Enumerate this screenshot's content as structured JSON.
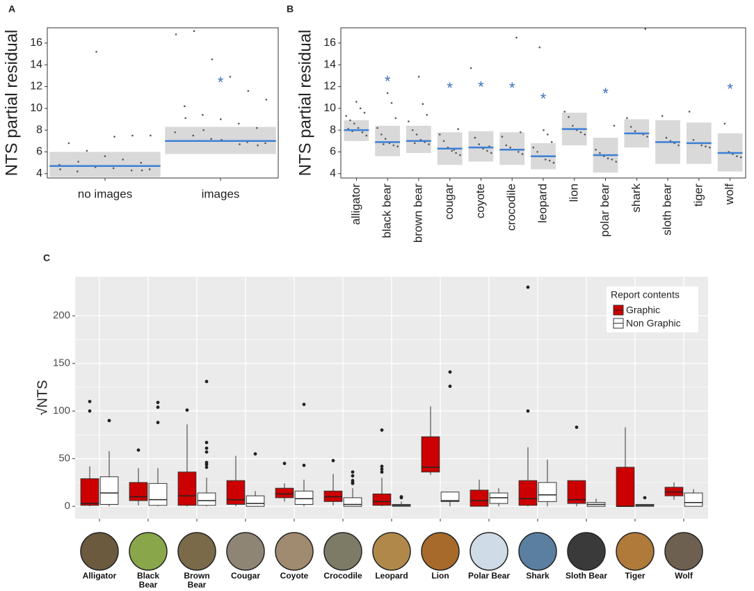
{
  "chart_data": [
    {
      "type": "interval",
      "panel": "A",
      "ylabel": "NTS partial residual",
      "categories": [
        "no images",
        "images"
      ],
      "values": [
        4.7,
        7.0
      ],
      "lower": [
        3.7,
        5.8
      ],
      "upper": [
        6.0,
        8.3
      ],
      "annotations": [
        null,
        "*"
      ],
      "points": [
        [
          4.4,
          4.3,
          4.5,
          4.6,
          4.2,
          4.8,
          5.0,
          5.3,
          5.6,
          6.1,
          6.8,
          7.5,
          7.5,
          7.4,
          15.2,
          5.1,
          4.4,
          4.3
        ],
        [
          6.8,
          6.9,
          7.0,
          7.2,
          7.5,
          7.8,
          8.2,
          8.6,
          9.0,
          9.4,
          10.2,
          10.8,
          11.6,
          12.9,
          14.5,
          17.1,
          16.8,
          6.6,
          6.7,
          7.1,
          8.0,
          9.1
        ]
      ],
      "ylim": [
        3.6,
        17.4
      ],
      "yticks": [
        4,
        6,
        8,
        10,
        12,
        14,
        16
      ]
    },
    {
      "type": "interval",
      "panel": "B",
      "ylabel": "NTS partial residual",
      "categories": [
        "alligator",
        "black bear",
        "brown bear",
        "cougar",
        "coyote",
        "crocodile",
        "leopard",
        "lion",
        "polar bear",
        "shark",
        "sloth bear",
        "tiger",
        "wolf"
      ],
      "values": [
        8.0,
        6.9,
        7.0,
        6.3,
        6.4,
        6.2,
        5.6,
        8.1,
        5.7,
        7.7,
        6.9,
        6.8,
        5.9
      ],
      "lower": [
        7.0,
        5.6,
        5.9,
        4.8,
        5.1,
        4.8,
        4.4,
        6.6,
        4.1,
        6.4,
        4.9,
        4.9,
        4.2
      ],
      "upper": [
        8.9,
        8.4,
        8.4,
        7.8,
        7.9,
        7.8,
        6.8,
        9.6,
        7.3,
        9.0,
        8.9,
        8.7,
        7.7
      ],
      "annotations": [
        null,
        "*",
        null,
        "*",
        "*",
        "*",
        "*",
        null,
        "*",
        null,
        null,
        null,
        "*"
      ],
      "points": [
        [
          7.5,
          7.8,
          8.2,
          8.6,
          8.9,
          9.3,
          9.6,
          10.0,
          10.6,
          7.9,
          8.1
        ],
        [
          6.5,
          6.6,
          6.8,
          7.2,
          7.6,
          8.2,
          9.1,
          10.5,
          11.4,
          6.7
        ],
        [
          6.7,
          6.9,
          7.1,
          7.6,
          8.0,
          8.8,
          9.4,
          10.4,
          12.9,
          6.8
        ],
        [
          5.7,
          5.9,
          6.1,
          6.4,
          7.0,
          7.6,
          8.1,
          6.2
        ],
        [
          5.9,
          6.1,
          6.3,
          6.7,
          7.3,
          13.7,
          6.5
        ],
        [
          5.8,
          6.0,
          6.2,
          6.4,
          6.6,
          7.4,
          7.8,
          16.5
        ],
        [
          5.0,
          5.2,
          5.3,
          5.6,
          6.0,
          6.4,
          6.9,
          7.6,
          8.0,
          15.6
        ],
        [
          7.6,
          7.8,
          8.0,
          8.4,
          9.2,
          9.7
        ],
        [
          5.1,
          5.3,
          5.4,
          5.6,
          5.9,
          6.2,
          8.4
        ],
        [
          7.4,
          7.6,
          7.7,
          7.9,
          8.3,
          9.1,
          17.3
        ],
        [
          6.6,
          6.8,
          7.0,
          7.3,
          9.3
        ],
        [
          6.4,
          6.5,
          6.6,
          6.8,
          7.1,
          9.7
        ],
        [
          5.5,
          5.6,
          5.8,
          6.0,
          8.6
        ]
      ],
      "ylim": [
        3.6,
        17.4
      ],
      "yticks": [
        4,
        6,
        8,
        10,
        12,
        14,
        16
      ]
    },
    {
      "type": "box",
      "panel": "C",
      "ylabel": "√NTS",
      "legend_title": "Report contents",
      "legend": "top-right",
      "grid": true,
      "categories": [
        "Alligator",
        "Black\nBear",
        "Brown\nBear",
        "Cougar",
        "Coyote",
        "Crocodile",
        "Leopard",
        "Lion",
        "Polar Bear",
        "Shark",
        "Sloth Bear",
        "Tiger",
        "Wolf"
      ],
      "series": [
        {
          "name": "Graphic",
          "color": "#cc0000",
          "boxes": [
            {
              "min": 0,
              "q1": 1,
              "median": 3,
              "q3": 29,
              "max": 42,
              "outliers": [
                100,
                110
              ]
            },
            {
              "min": 1,
              "q1": 6,
              "median": 10,
              "q3": 25,
              "max": 40,
              "outliers": [
                59
              ]
            },
            {
              "min": 0,
              "q1": 1,
              "median": 11,
              "q3": 36,
              "max": 86,
              "outliers": [
                101
              ]
            },
            {
              "min": 0,
              "q1": 2,
              "median": 7,
              "q3": 27,
              "max": 53,
              "outliers": []
            },
            {
              "min": 5,
              "q1": 9,
              "median": 13,
              "q3": 19,
              "max": 24,
              "outliers": [
                45
              ]
            },
            {
              "min": 1,
              "q1": 5,
              "median": 10,
              "q3": 16,
              "max": 34,
              "outliers": [
                48
              ]
            },
            {
              "min": 0,
              "q1": 1,
              "median": 5,
              "q3": 13,
              "max": 30,
              "outliers": [
                36,
                39,
                42,
                80
              ]
            },
            {
              "min": 33,
              "q1": 36,
              "median": 41,
              "q3": 73,
              "max": 105,
              "outliers": []
            },
            {
              "min": 0,
              "q1": 0,
              "median": 6,
              "q3": 17,
              "max": 28,
              "outliers": []
            },
            {
              "min": 0,
              "q1": 1,
              "median": 8,
              "q3": 27,
              "max": 62,
              "outliers": [
                100,
                230
              ]
            },
            {
              "min": 0,
              "q1": 3,
              "median": 7,
              "q3": 27,
              "max": 27,
              "outliers": [
                83
              ]
            },
            {
              "min": 0,
              "q1": 0,
              "median": 0,
              "q3": 41,
              "max": 83,
              "outliers": []
            },
            {
              "min": 7,
              "q1": 11,
              "median": 15,
              "q3": 20,
              "max": 25,
              "outliers": []
            }
          ]
        },
        {
          "name": "Non Graphic",
          "color": "#ffffff",
          "boxes": [
            {
              "min": 0,
              "q1": 2,
              "median": 14,
              "q3": 31,
              "max": 58,
              "outliers": [
                90
              ]
            },
            {
              "min": 0,
              "q1": 1,
              "median": 7,
              "q3": 24,
              "max": 40,
              "outliers": [
                88,
                104,
                109
              ]
            },
            {
              "min": 0,
              "q1": 1,
              "median": 6,
              "q3": 14,
              "max": 30,
              "outliers": [
                41,
                44,
                46,
                57,
                61,
                67,
                131
              ]
            },
            {
              "min": 0,
              "q1": 0,
              "median": 3,
              "q3": 11,
              "max": 16,
              "outliers": [
                55
              ]
            },
            {
              "min": 0,
              "q1": 2,
              "median": 8,
              "q3": 16,
              "max": 28,
              "outliers": [
                43,
                107
              ]
            },
            {
              "min": 0,
              "q1": 0,
              "median": 2,
              "q3": 9,
              "max": 19,
              "outliers": [
                24,
                25,
                27,
                32,
                36
              ]
            },
            {
              "min": 0,
              "q1": 0,
              "median": 1,
              "q3": 2,
              "max": 5,
              "outliers": [
                9,
                10
              ]
            },
            {
              "min": 0,
              "q1": 5,
              "median": 6,
              "q3": 15,
              "max": 15,
              "outliers": [
                126,
                141
              ]
            },
            {
              "min": 0,
              "q1": 3,
              "median": 9,
              "q3": 14,
              "max": 19,
              "outliers": []
            },
            {
              "min": 0,
              "q1": 5,
              "median": 12,
              "q3": 25,
              "max": 49,
              "outliers": []
            },
            {
              "min": 0,
              "q1": 0,
              "median": 2,
              "q3": 4,
              "max": 8,
              "outliers": []
            },
            {
              "min": 0,
              "q1": 0,
              "median": 1,
              "q3": 2,
              "max": 2,
              "outliers": [
                9
              ]
            },
            {
              "min": 0,
              "q1": 0,
              "median": 4,
              "q3": 14,
              "max": 18,
              "outliers": []
            }
          ]
        }
      ],
      "ylim": [
        -13,
        241
      ],
      "yticks": [
        0,
        50,
        100,
        150,
        200
      ]
    }
  ]
}
